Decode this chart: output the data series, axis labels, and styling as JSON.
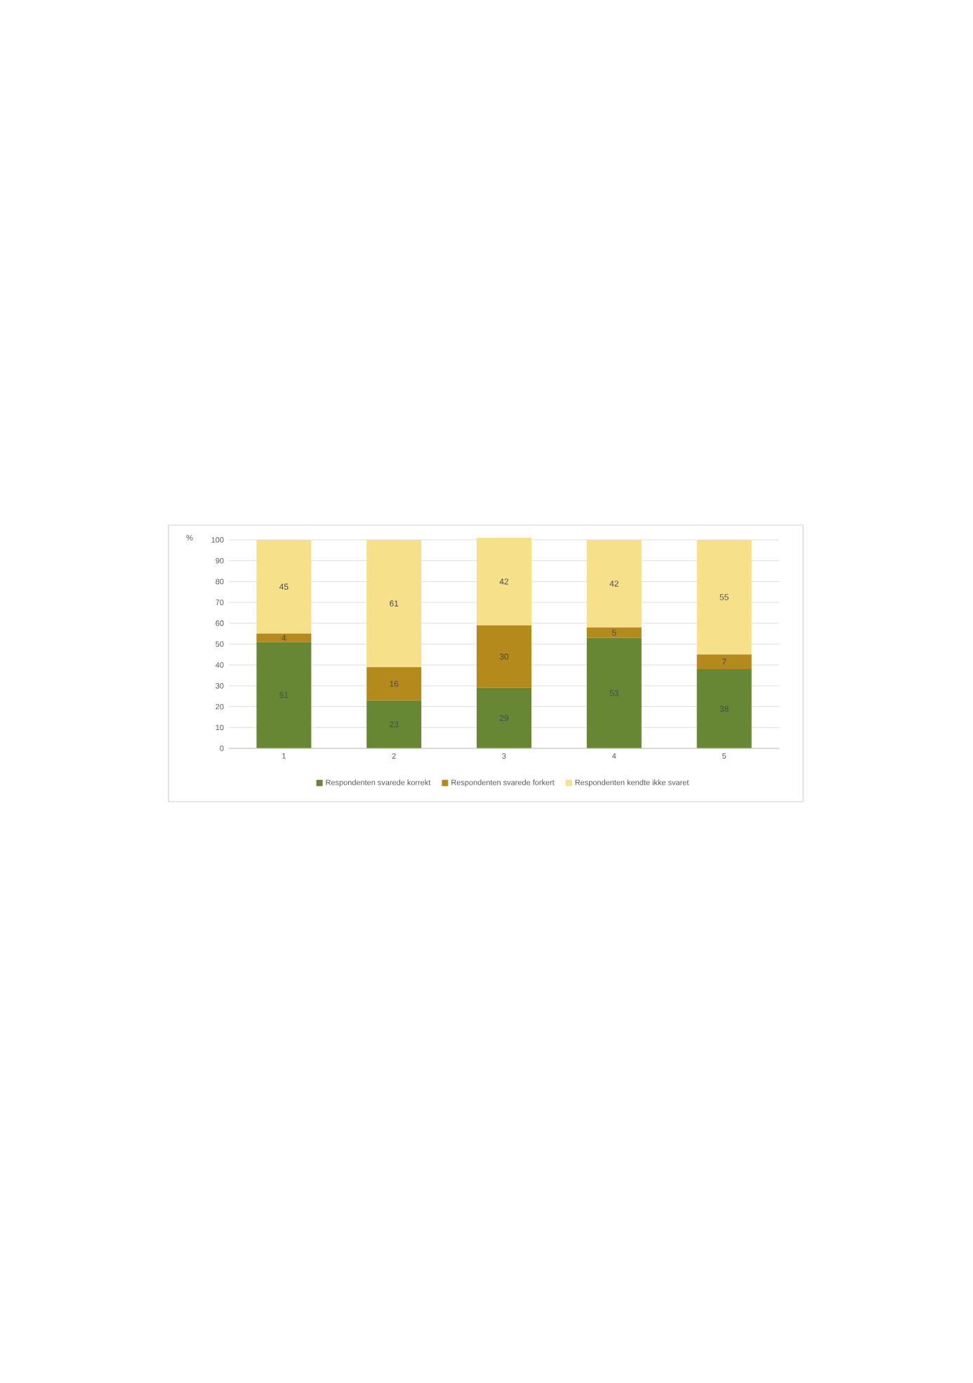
{
  "chart_data": {
    "type": "bar",
    "stacked": true,
    "ylabel": "%",
    "categories": [
      "1",
      "2",
      "3",
      "4",
      "5"
    ],
    "series": [
      {
        "name": "Respondenten svarede korrekt",
        "color": "#678734",
        "values": [
          51,
          23,
          29,
          53,
          38
        ]
      },
      {
        "name": "Respondenten svarede forkert",
        "color": "#b48a1c",
        "values": [
          4,
          16,
          30,
          5,
          7
        ]
      },
      {
        "name": "Respondenten kendte ikke svaret",
        "color": "#f7e08a",
        "values": [
          45,
          61,
          42,
          42,
          55
        ]
      }
    ],
    "ylim": [
      0,
      101
    ],
    "yticks": [
      0,
      10,
      20,
      30,
      40,
      50,
      60,
      70,
      80,
      90,
      100
    ],
    "grid": "y",
    "legend": "bottom",
    "data_labels": true
  }
}
